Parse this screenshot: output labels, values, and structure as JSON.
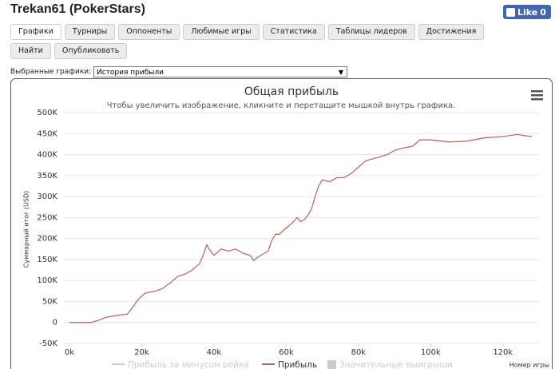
{
  "header": {
    "title": "Trekan61 (PokerStars)",
    "like_label": "Like",
    "like_count": 0
  },
  "tabs": [
    {
      "label": "Графики",
      "active": true
    },
    {
      "label": "Турниры"
    },
    {
      "label": "Оппоненты"
    },
    {
      "label": "Любимые игры"
    },
    {
      "label": "Статистика"
    },
    {
      "label": "Таблицы лидеров"
    },
    {
      "label": "Достижения"
    },
    {
      "label": "Найти"
    },
    {
      "label": "Опубликовать"
    }
  ],
  "selector": {
    "label": "Выбранные графики:",
    "value": "История прибыли"
  },
  "chart_data": {
    "type": "line",
    "title": "Общая прибыль",
    "subtitle": "Чтобы увеличить изображение, кликните и перетащите мышкой внутрь графика.",
    "y_label": "Суммарный итог (USD)",
    "x_label": "Номер игры",
    "x": [
      0,
      6000,
      8000,
      10000,
      14000,
      16000,
      17000,
      19000,
      21000,
      24000,
      26000,
      28000,
      30000,
      32000,
      34000,
      36000,
      37000,
      38000,
      39000,
      40000,
      42000,
      44000,
      46000,
      48000,
      50000,
      51000,
      52000,
      54000,
      55000,
      56000,
      57000,
      58000,
      60000,
      62000,
      63000,
      64000,
      65000,
      66000,
      67000,
      68000,
      69000,
      70000,
      72000,
      74000,
      76000,
      78000,
      80000,
      82000,
      84000,
      86000,
      88000,
      90000,
      92000,
      95000,
      97000,
      100000,
      105000,
      110000,
      115000,
      120000,
      124000,
      126000,
      128000
    ],
    "series": [
      {
        "name": "Прибыль за минусом рейка",
        "color": "#cccccc",
        "hidden": true
      },
      {
        "name": "Прибыль",
        "color": "#b5605a",
        "values": [
          0,
          0,
          5000,
          12000,
          18000,
          20000,
          30000,
          55000,
          70000,
          75000,
          82000,
          95000,
          110000,
          115000,
          125000,
          140000,
          160000,
          185000,
          170000,
          160000,
          175000,
          170000,
          175000,
          165000,
          160000,
          148000,
          155000,
          165000,
          170000,
          195000,
          210000,
          210000,
          225000,
          240000,
          250000,
          240000,
          245000,
          255000,
          270000,
          300000,
          325000,
          340000,
          335000,
          345000,
          345000,
          355000,
          370000,
          385000,
          390000,
          395000,
          400000,
          410000,
          415000,
          420000,
          435000,
          435000,
          430000,
          432000,
          440000,
          443000,
          448000,
          445000,
          443000
        ]
      },
      {
        "name": "Значительные выигрыши",
        "color": "#cccccc",
        "hidden": true,
        "marker": "square"
      }
    ],
    "xlim": [
      0,
      130000
    ],
    "ylim": [
      -50000,
      500000
    ],
    "xticks": [
      {
        "value": 0,
        "label": "0k"
      },
      {
        "value": 20000,
        "label": "20k"
      },
      {
        "value": 40000,
        "label": "40k"
      },
      {
        "value": 60000,
        "label": "60k"
      },
      {
        "value": 80000,
        "label": "80k"
      },
      {
        "value": 100000,
        "label": "100k"
      },
      {
        "value": 120000,
        "label": "120k"
      }
    ],
    "yticks": [
      {
        "value": -50000,
        "label": "-50K"
      },
      0,
      {
        "value": 50000,
        "label": "50K"
      },
      {
        "value": 100000,
        "label": "100K"
      },
      {
        "value": 150000,
        "label": "150K"
      },
      {
        "value": 200000,
        "label": "200K"
      },
      {
        "value": 250000,
        "label": "250K"
      },
      {
        "value": 300000,
        "label": "300K"
      },
      {
        "value": 350000,
        "label": "350K"
      },
      {
        "value": 400000,
        "label": "400K"
      },
      {
        "value": 450000,
        "label": "450K"
      },
      {
        "value": 500000,
        "label": "500K"
      }
    ],
    "grid": true
  }
}
